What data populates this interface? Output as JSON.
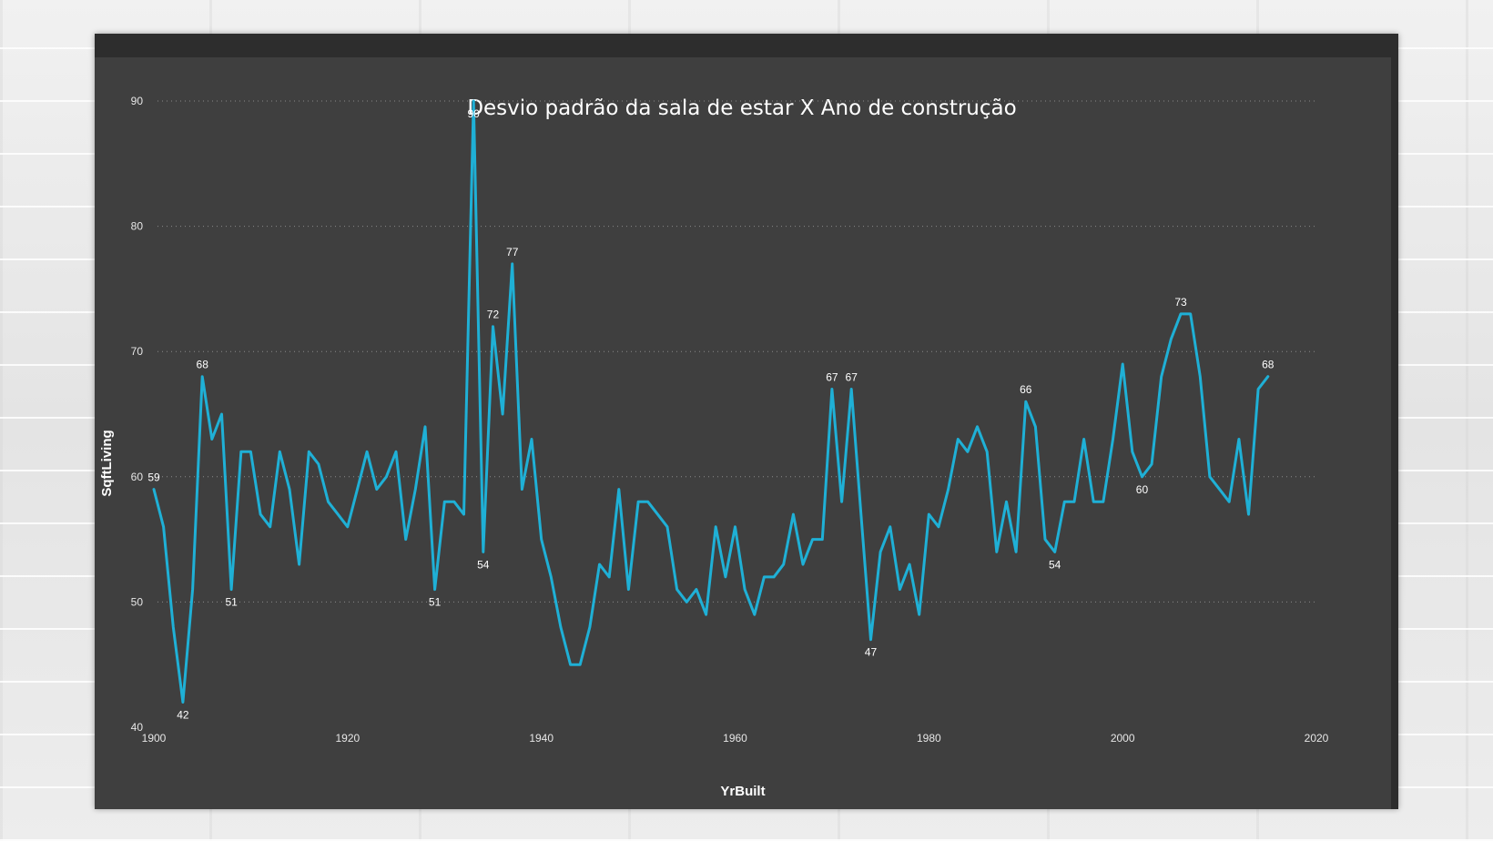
{
  "chart_data": {
    "type": "line",
    "title": "Desvio padrão da sala de estar X Ano de construção",
    "xlabel": "YrBuilt",
    "ylabel": "SqftLiving",
    "xlim": [
      1900,
      2020
    ],
    "ylim": [
      40,
      90
    ],
    "x_ticks": [
      "1900",
      "1920",
      "1940",
      "1960",
      "1980",
      "2000",
      "2020"
    ],
    "y_ticks": [
      "40",
      "50",
      "60",
      "70",
      "80",
      "90"
    ],
    "grid": "horizontal-dotted",
    "line_color": "#1fb0d6",
    "series": [
      {
        "x": [
          1900,
          1901,
          1902,
          1903,
          1904,
          1905,
          1906,
          1907,
          1908,
          1909,
          1910,
          1911,
          1912,
          1913,
          1914,
          1915,
          1916,
          1917,
          1918,
          1919,
          1920,
          1921,
          1922,
          1923,
          1924,
          1925,
          1926,
          1927,
          1928,
          1929,
          1930,
          1931,
          1932,
          1933,
          1934,
          1935,
          1936,
          1937,
          1938,
          1939,
          1940,
          1941,
          1942,
          1943,
          1944,
          1945,
          1946,
          1947,
          1948,
          1949,
          1950,
          1951,
          1952,
          1953,
          1954,
          1955,
          1956,
          1957,
          1958,
          1959,
          1960,
          1961,
          1962,
          1963,
          1964,
          1965,
          1966,
          1967,
          1968,
          1969,
          1970,
          1971,
          1972,
          1973,
          1974,
          1975,
          1976,
          1977,
          1978,
          1979,
          1980,
          1981,
          1982,
          1983,
          1984,
          1985,
          1986,
          1987,
          1988,
          1989,
          1990,
          1991,
          1992,
          1993,
          1994,
          1995,
          1996,
          1997,
          1998,
          1999,
          2000,
          2001,
          2002,
          2003,
          2004,
          2005,
          2006,
          2007,
          2008,
          2009,
          2010,
          2011,
          2012,
          2013,
          2014,
          2015
        ],
        "values": [
          59,
          56,
          48,
          42,
          51,
          68,
          63,
          65,
          51,
          62,
          62,
          57,
          56,
          62,
          59,
          53,
          62,
          61,
          58,
          57,
          56,
          59,
          62,
          59,
          60,
          62,
          55,
          59,
          64,
          51,
          58,
          58,
          57,
          90,
          54,
          72,
          65,
          77,
          59,
          63,
          55,
          52,
          48,
          45,
          45,
          48,
          53,
          52,
          59,
          51,
          58,
          58,
          57,
          56,
          51,
          50,
          51,
          49,
          56,
          52,
          56,
          51,
          49,
          52,
          52,
          53,
          57,
          53,
          55,
          55,
          67,
          58,
          67,
          57,
          47,
          54,
          56,
          51,
          53,
          49,
          57,
          56,
          59,
          63,
          62,
          64,
          62,
          54,
          58,
          54,
          66,
          64,
          55,
          54,
          58,
          58,
          63,
          58,
          58,
          63,
          69,
          62,
          60,
          61,
          68,
          71,
          73,
          73,
          68,
          60,
          59,
          58,
          63,
          57,
          67,
          68
        ]
      }
    ],
    "data_labels": [
      {
        "x": 1900,
        "y": 59,
        "text": "59",
        "pos": "above"
      },
      {
        "x": 1903,
        "y": 42,
        "text": "42",
        "pos": "below"
      },
      {
        "x": 1905,
        "y": 68,
        "text": "68",
        "pos": "above"
      },
      {
        "x": 1908,
        "y": 51,
        "text": "51",
        "pos": "below"
      },
      {
        "x": 1929,
        "y": 51,
        "text": "51",
        "pos": "below"
      },
      {
        "x": 1933,
        "y": 90,
        "text": "90",
        "pos": "below"
      },
      {
        "x": 1934,
        "y": 54,
        "text": "54",
        "pos": "below"
      },
      {
        "x": 1935,
        "y": 72,
        "text": "72",
        "pos": "above"
      },
      {
        "x": 1937,
        "y": 77,
        "text": "77",
        "pos": "above"
      },
      {
        "x": 1970,
        "y": 67,
        "text": "67",
        "pos": "above"
      },
      {
        "x": 1972,
        "y": 67,
        "text": "67",
        "pos": "above"
      },
      {
        "x": 1974,
        "y": 47,
        "text": "47",
        "pos": "below"
      },
      {
        "x": 1990,
        "y": 66,
        "text": "66",
        "pos": "above"
      },
      {
        "x": 1993,
        "y": 54,
        "text": "54",
        "pos": "below"
      },
      {
        "x": 2002,
        "y": 60,
        "text": "60",
        "pos": "below"
      },
      {
        "x": 2006,
        "y": 73,
        "text": "73",
        "pos": "above"
      },
      {
        "x": 2015,
        "y": 68,
        "text": "68",
        "pos": "above"
      }
    ]
  }
}
